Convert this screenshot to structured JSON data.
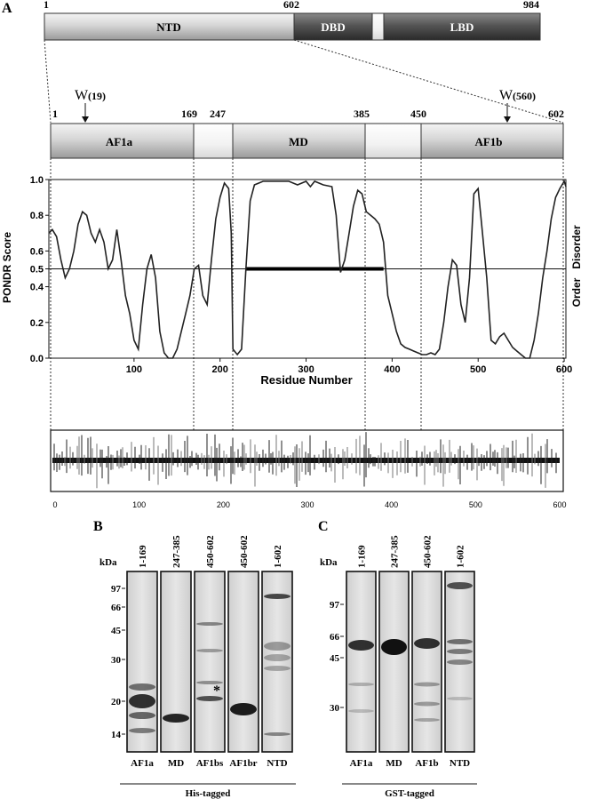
{
  "panel_labels": {
    "a": "A",
    "b": "B",
    "c": "C"
  },
  "full_protein": {
    "start": "1",
    "ntd_end": "602",
    "end": "984",
    "domains": [
      "NTD",
      "DBD",
      "LBD"
    ]
  },
  "ntd_map": {
    "boundaries": [
      "1",
      "169",
      "247",
      "385",
      "450",
      "602"
    ],
    "domains": [
      "AF1a",
      "MD",
      "AF1b"
    ],
    "trp_markers": [
      {
        "label": "W",
        "pos": "(19)"
      },
      {
        "label": "W",
        "pos": "(560)"
      }
    ]
  },
  "chart_data": {
    "type": "line",
    "ylabel": "PONDR Score",
    "xlabel": "Residue Number",
    "y_ticks": [
      "0.0",
      "0.2",
      "0.4",
      "0.5",
      "0.6",
      "0.8",
      "1.0"
    ],
    "x_ticks": [
      "100",
      "200",
      "300",
      "400",
      "500",
      "600"
    ],
    "right_labels": [
      "Disorder",
      "Order"
    ],
    "xlim": [
      1,
      602
    ],
    "ylim": [
      0,
      1
    ],
    "threshold": 0.5,
    "highlight_segment": {
      "x": [
        230,
        390
      ],
      "y": 0.5
    },
    "series": [
      {
        "x": [
          1,
          5,
          10,
          15,
          20,
          25,
          30,
          35,
          40,
          45,
          50,
          55,
          60,
          65,
          70,
          75,
          80,
          85,
          90,
          95,
          100,
          105,
          110,
          115,
          120,
          125,
          130,
          135,
          140,
          145,
          150,
          155,
          160,
          165,
          170,
          175,
          180,
          185,
          190,
          195,
          200,
          205,
          210,
          213,
          215,
          220,
          225,
          230,
          235,
          240,
          245,
          250,
          260,
          270,
          280,
          290,
          300,
          305,
          310,
          320,
          330,
          335,
          340,
          345,
          350,
          355,
          360,
          365,
          370,
          375,
          380,
          385,
          390,
          395,
          400,
          405,
          410,
          415,
          420,
          425,
          430,
          435,
          440,
          445,
          450,
          455,
          460,
          465,
          470,
          475,
          480,
          485,
          490,
          495,
          500,
          505,
          510,
          515,
          520,
          525,
          530,
          535,
          540,
          545,
          550,
          555,
          560,
          565,
          570,
          575,
          580,
          585,
          590,
          595,
          600,
          602
        ],
        "y": [
          0.7,
          0.72,
          0.68,
          0.55,
          0.45,
          0.5,
          0.6,
          0.75,
          0.82,
          0.8,
          0.7,
          0.65,
          0.72,
          0.65,
          0.5,
          0.55,
          0.72,
          0.55,
          0.35,
          0.25,
          0.1,
          0.05,
          0.3,
          0.5,
          0.58,
          0.45,
          0.15,
          0.03,
          0.0,
          0.0,
          0.05,
          0.15,
          0.25,
          0.35,
          0.5,
          0.52,
          0.35,
          0.3,
          0.55,
          0.78,
          0.9,
          0.98,
          0.95,
          0.7,
          0.05,
          0.02,
          0.05,
          0.5,
          0.88,
          0.97,
          0.98,
          0.99,
          0.99,
          0.99,
          0.99,
          0.97,
          0.99,
          0.96,
          0.99,
          0.97,
          0.96,
          0.8,
          0.48,
          0.55,
          0.7,
          0.85,
          0.94,
          0.92,
          0.82,
          0.8,
          0.78,
          0.75,
          0.65,
          0.35,
          0.25,
          0.15,
          0.08,
          0.06,
          0.05,
          0.04,
          0.03,
          0.02,
          0.02,
          0.03,
          0.02,
          0.05,
          0.2,
          0.4,
          0.55,
          0.52,
          0.3,
          0.2,
          0.45,
          0.92,
          0.95,
          0.7,
          0.45,
          0.1,
          0.08,
          0.12,
          0.14,
          0.1,
          0.06,
          0.04,
          0.02,
          0.0,
          0.0,
          0.1,
          0.25,
          0.45,
          0.6,
          0.78,
          0.9,
          0.95,
          0.99,
          0.96
        ]
      }
    ]
  },
  "hydropathy": {
    "x_ticks": [
      "0",
      "100",
      "200",
      "300",
      "400",
      "500",
      "600"
    ]
  },
  "gel_b": {
    "kda_label": "kDa",
    "markers": [
      "97",
      "66",
      "45",
      "30",
      "20",
      "14"
    ],
    "lanes": [
      {
        "range": "1-169",
        "name": "AF1a"
      },
      {
        "range": "247-385",
        "name": "MD"
      },
      {
        "range": "450-602",
        "name": "AF1bs"
      },
      {
        "range": "450-602",
        "name": "AF1br"
      },
      {
        "range": "1-602",
        "name": "NTD"
      }
    ],
    "asterisk": "*",
    "tag": "His-tagged"
  },
  "gel_c": {
    "kda_label": "kDa",
    "markers": [
      "97",
      "66",
      "45",
      "30"
    ],
    "lanes": [
      {
        "range": "1-169",
        "name": "AF1a"
      },
      {
        "range": "247-385",
        "name": "MD"
      },
      {
        "range": "450-602",
        "name": "AF1b"
      },
      {
        "range": "1-602",
        "name": "NTD"
      }
    ],
    "tag": "GST-tagged"
  }
}
